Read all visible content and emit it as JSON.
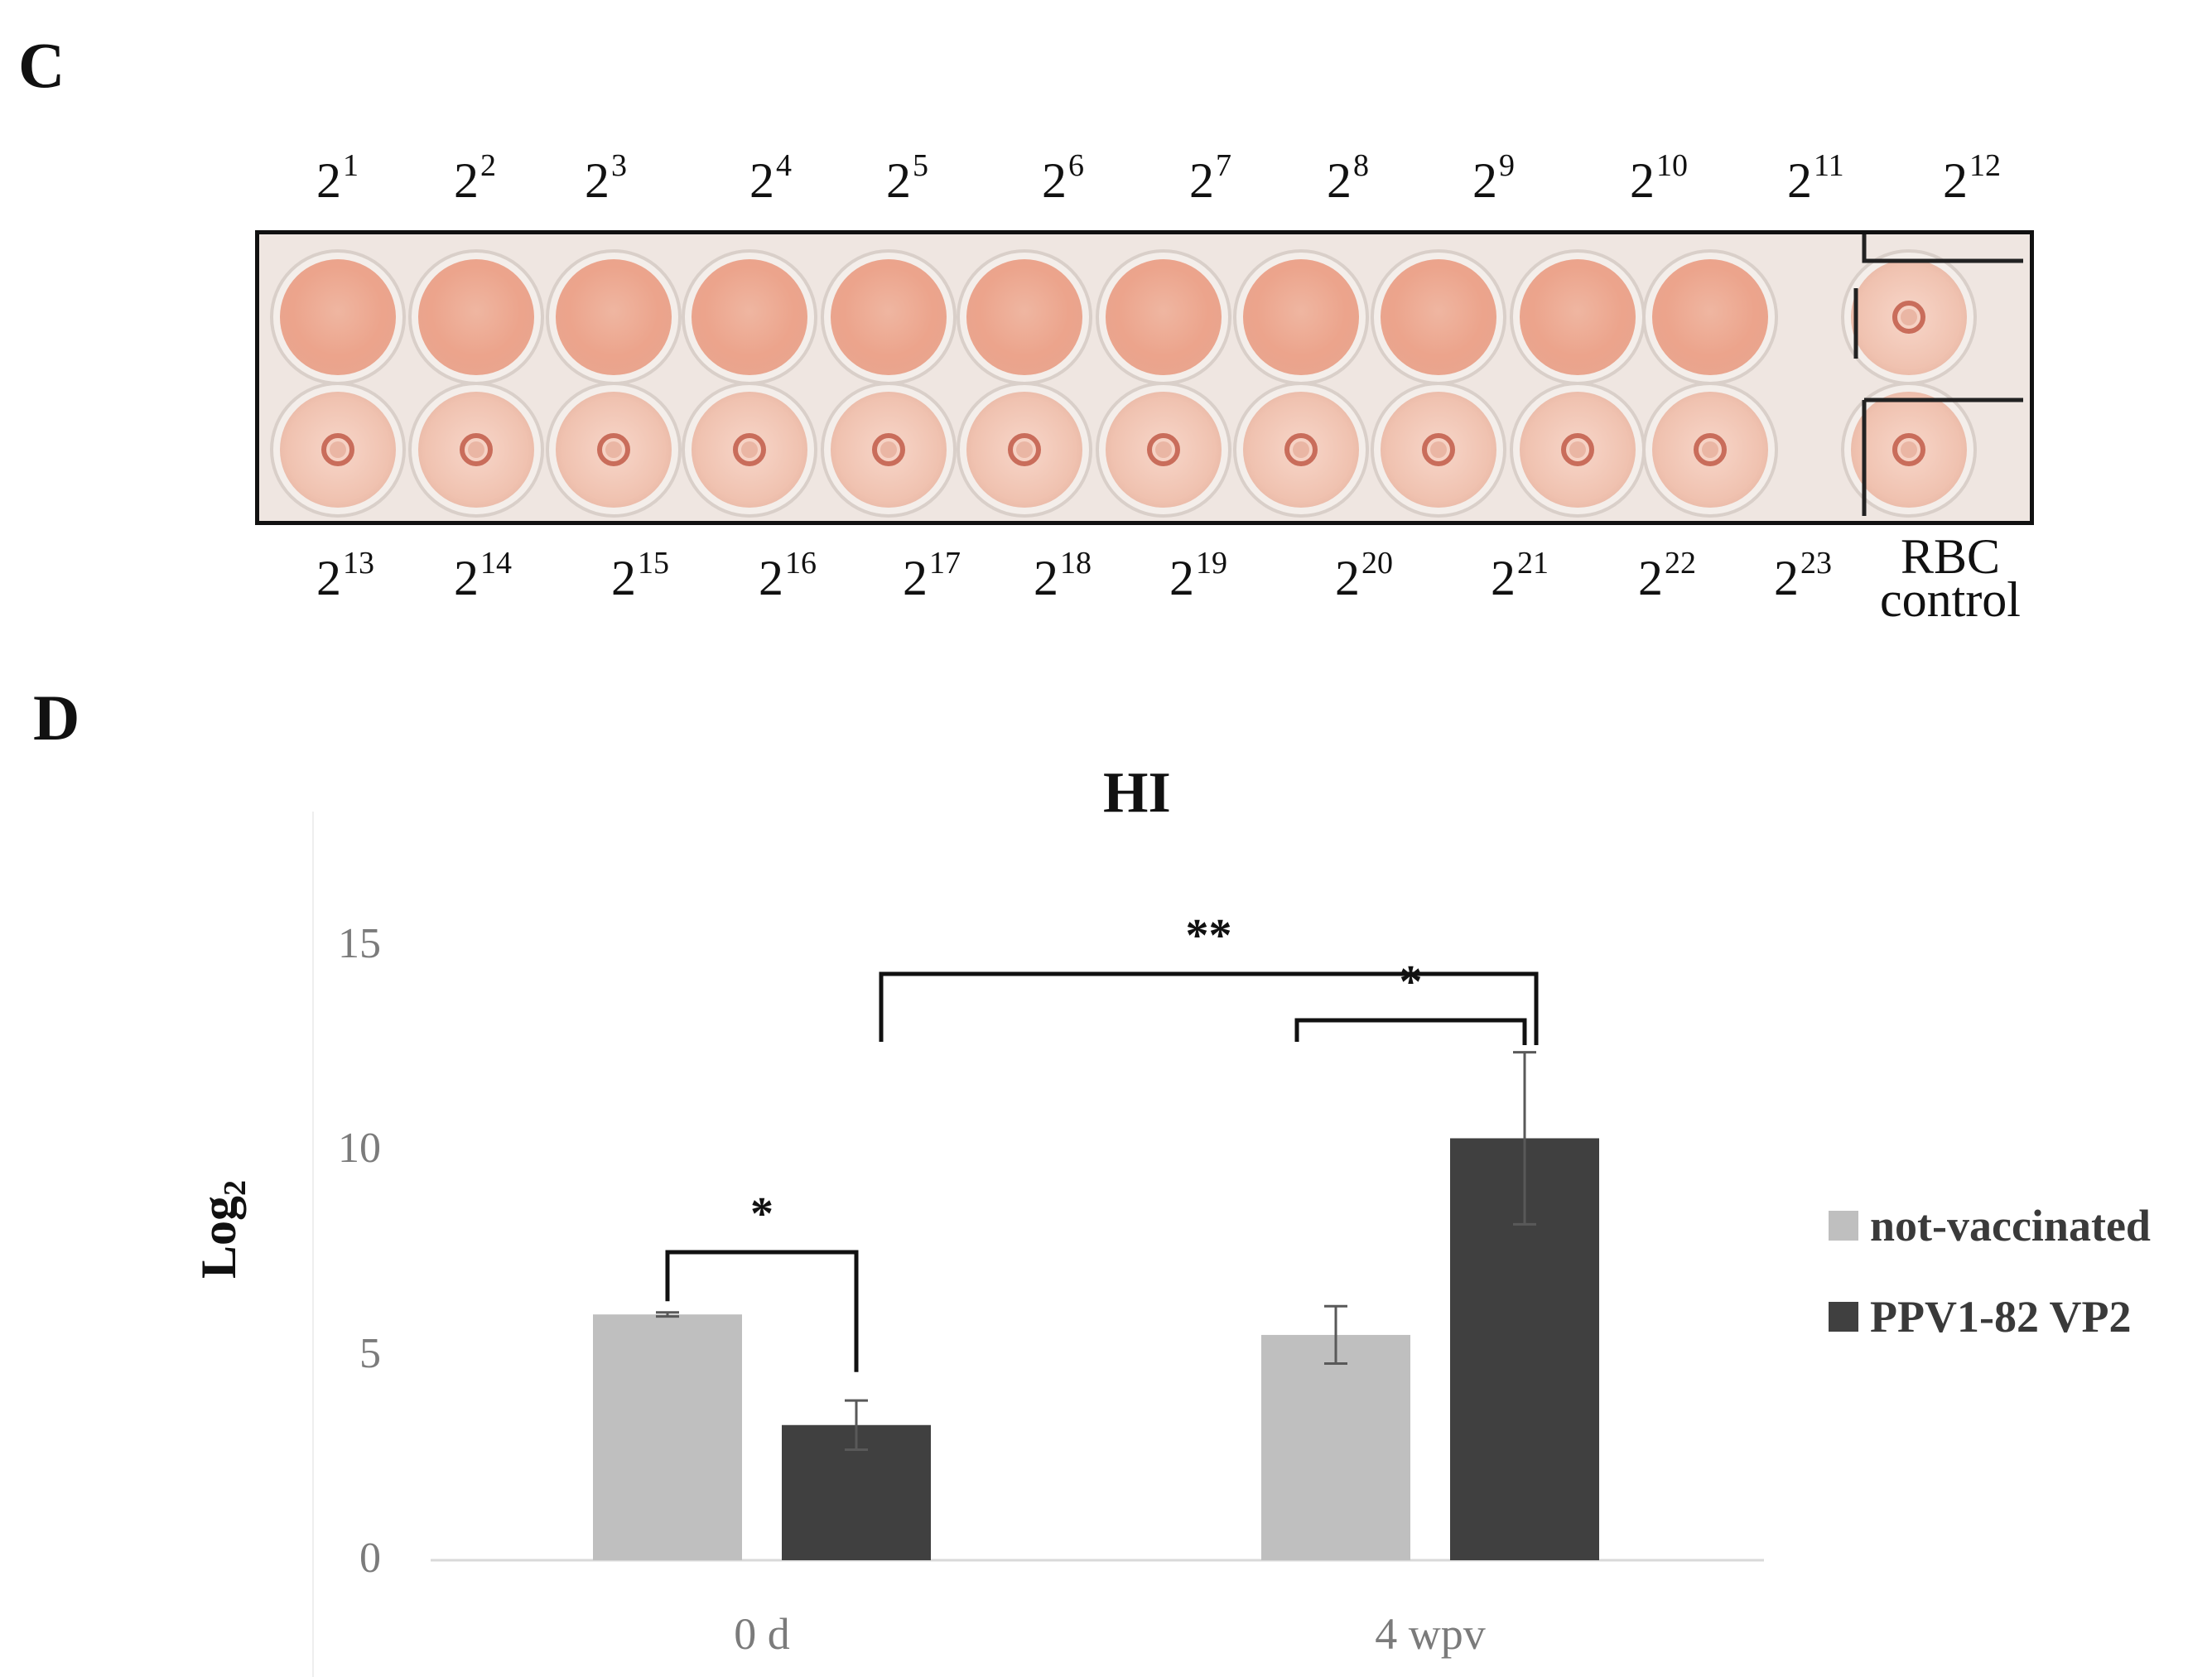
{
  "panelC": {
    "label": "C",
    "top_row": [
      {
        "base": "2",
        "exp": "1"
      },
      {
        "base": "2",
        "exp": "2"
      },
      {
        "base": "2",
        "exp": "3"
      },
      {
        "base": "2",
        "exp": "4"
      },
      {
        "base": "2",
        "exp": "5"
      },
      {
        "base": "2",
        "exp": "6"
      },
      {
        "base": "2",
        "exp": "7"
      },
      {
        "base": "2",
        "exp": "8"
      },
      {
        "base": "2",
        "exp": "9"
      },
      {
        "base": "2",
        "exp": "10"
      },
      {
        "base": "2",
        "exp": "11"
      },
      {
        "base": "2",
        "exp": "12"
      }
    ],
    "bottom_row": [
      {
        "base": "2",
        "exp": "13"
      },
      {
        "base": "2",
        "exp": "14"
      },
      {
        "base": "2",
        "exp": "15"
      },
      {
        "base": "2",
        "exp": "16"
      },
      {
        "base": "2",
        "exp": "17"
      },
      {
        "base": "2",
        "exp": "18"
      },
      {
        "base": "2",
        "exp": "19"
      },
      {
        "base": "2",
        "exp": "20"
      },
      {
        "base": "2",
        "exp": "21"
      },
      {
        "base": "2",
        "exp": "22"
      },
      {
        "base": "2",
        "exp": "23"
      }
    ],
    "control_label_line1": "RBC",
    "control_label_line2": "control"
  },
  "panelD": {
    "label": "D"
  },
  "colors": {
    "not_vaccinated": "#bfbfbf",
    "vaccinated": "#404040",
    "axis": "#d9d9d9",
    "tick": "#7b7b7b"
  },
  "chart_data": {
    "type": "bar",
    "title": "HI",
    "ylabel_main": "Log",
    "ylabel_sub": "2",
    "xlabel": "",
    "categories": [
      "0 d",
      "4 wpv"
    ],
    "ylim": [
      0,
      15
    ],
    "yticks": [
      0,
      5,
      10,
      15
    ],
    "series": [
      {
        "name": "not-vaccinated",
        "values": [
          6.0,
          5.5
        ],
        "errors": [
          0.05,
          0.7
        ]
      },
      {
        "name": "PPV1-82 VP2",
        "values": [
          3.3,
          10.3
        ],
        "errors": [
          0.6,
          2.1
        ]
      }
    ],
    "legend_position": "right",
    "significance": [
      {
        "label": "*",
        "between": "0 d: not-vaccinated vs PPV1-82 VP2"
      },
      {
        "label": "*",
        "between": "4 wpv: not-vaccinated vs PPV1-82 VP2"
      },
      {
        "label": "**",
        "between": "PPV1-82 VP2: 0 d vs 4 wpv"
      }
    ]
  }
}
